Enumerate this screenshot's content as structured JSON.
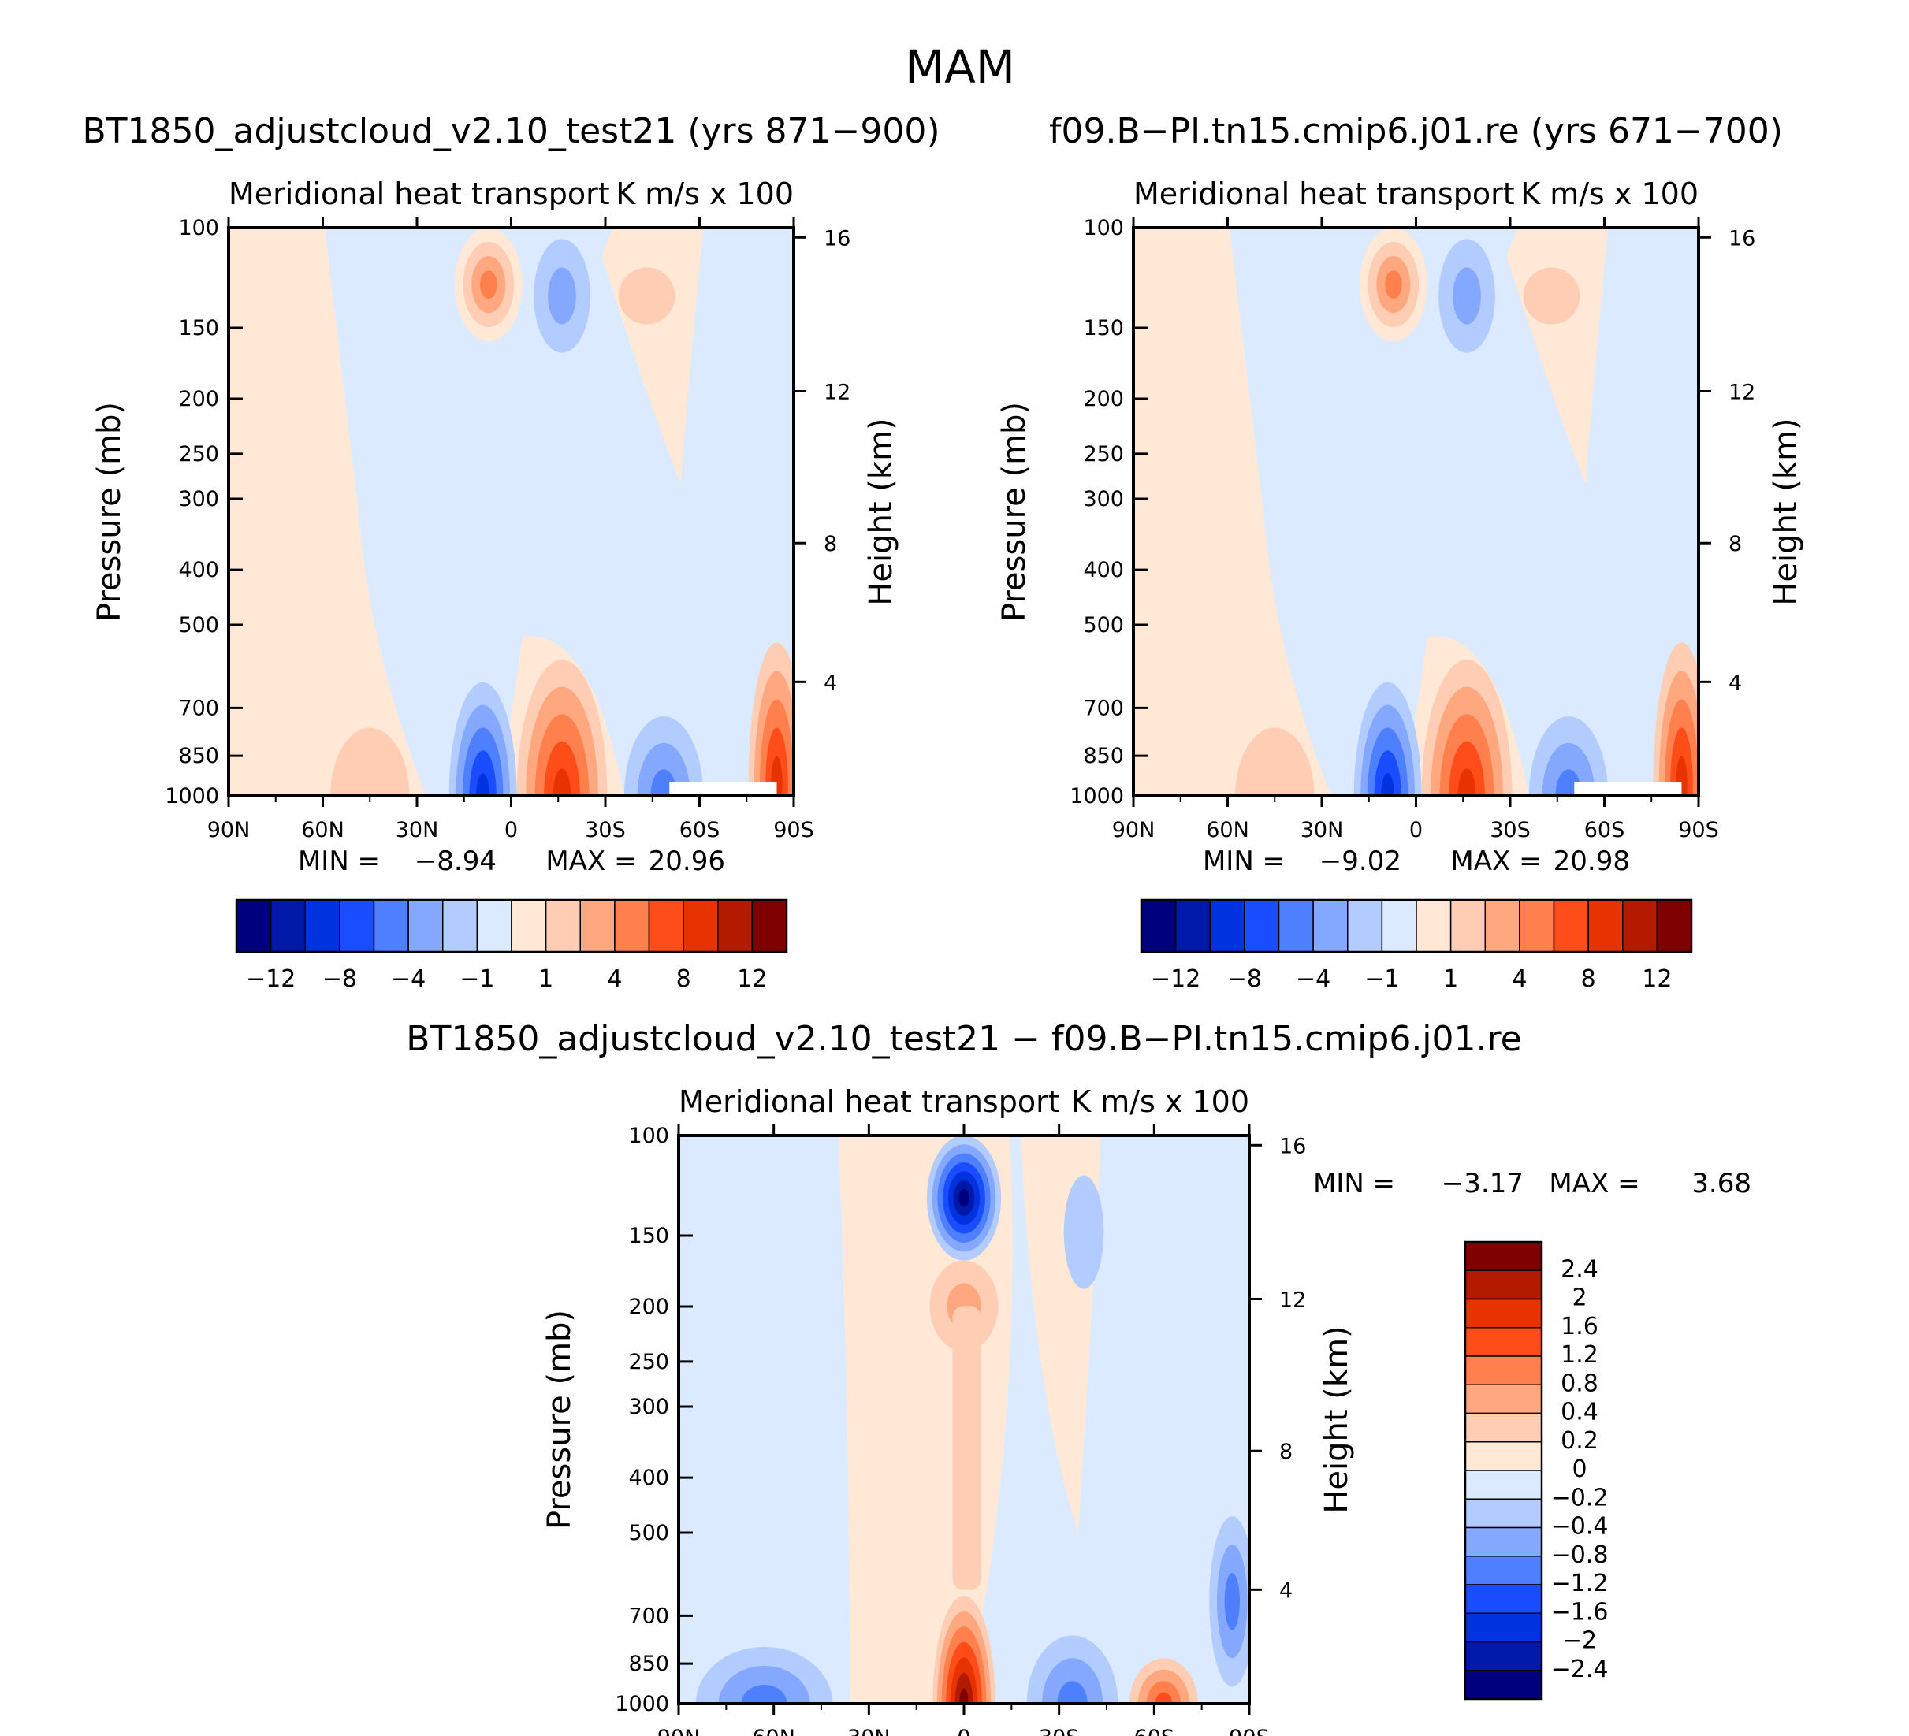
{
  "figure_title": "MAM",
  "panels": [
    {
      "title": "BT1850_adjustcloud_v2.10_test21 (yrs 871−900)",
      "subtitle_left": "Meridional heat transport",
      "subtitle_right": "K m/s x 100",
      "min_label": "MIN =",
      "min_value": "−8.94",
      "max_label": "MAX =",
      "max_value": "20.96"
    },
    {
      "title": "f09.B−PI.tn15.cmip6.j01.re (yrs 671−700)",
      "subtitle_left": "Meridional heat transport",
      "subtitle_right": "K m/s x 100",
      "min_label": "MIN =",
      "min_value": "−9.02",
      "max_label": "MAX =",
      "max_value": "20.98"
    },
    {
      "title": "BT1850_adjustcloud_v2.10_test21 − f09.B−PI.tn15.cmip6.j01.re",
      "subtitle_left": "Meridional heat transport",
      "subtitle_right": "K m/s x 100",
      "min_label": "MIN =",
      "min_value": "−3.17",
      "max_label": "MAX =",
      "max_value": "3.68"
    }
  ],
  "chart_data": {
    "type": "heatmap",
    "x_ticks": [
      "90N",
      "60N",
      "30N",
      "0",
      "30S",
      "60S",
      "90S"
    ],
    "x_values": [
      90,
      60,
      30,
      0,
      -30,
      -60,
      -90
    ],
    "xlim": [
      90,
      -90
    ],
    "ylabel": "Pressure (mb)",
    "y_ticks": [
      "100",
      "150",
      "200",
      "250",
      "300",
      "400",
      "500",
      "700",
      "850",
      "1000"
    ],
    "y_values": [
      100,
      150,
      200,
      250,
      300,
      400,
      500,
      700,
      850,
      1000
    ],
    "ylim": [
      1000,
      100
    ],
    "ylabel_right": "Height (km)",
    "height_ticks": [
      "16",
      "12",
      "8",
      "4"
    ],
    "height_pressure_mb": [
      104,
      194,
      359,
      630
    ],
    "abs_colorbar": {
      "levels": [
        "−12",
        "−8",
        "−4",
        "−1",
        "1",
        "4",
        "8",
        "12"
      ],
      "colors": [
        "#00007f",
        "#0019a8",
        "#0033e0",
        "#1a4dff",
        "#4d7fff",
        "#85a8ff",
        "#b3ccff",
        "#dbeaff",
        "#ffe8d6",
        "#ffcdb4",
        "#ffa880",
        "#ff7f4d",
        "#ff4d1a",
        "#e63300",
        "#b31a00",
        "#7f0000"
      ]
    },
    "diff_colorbar": {
      "levels": [
        "2.4",
        "2",
        "1.6",
        "1.2",
        "0.8",
        "0.4",
        "0.2",
        "0",
        "−0.2",
        "−0.4",
        "−0.8",
        "−1.2",
        "−1.6",
        "−2",
        "−2.4"
      ],
      "colors": [
        "#7f0000",
        "#b31a00",
        "#e63300",
        "#ff4d1a",
        "#ff7f4d",
        "#ffa880",
        "#ffcdb4",
        "#ffe8d6",
        "#dbeaff",
        "#b3ccff",
        "#85a8ff",
        "#4d7fff",
        "#1a4dff",
        "#0033e0",
        "#0019a8",
        "#00007f"
      ]
    }
  }
}
